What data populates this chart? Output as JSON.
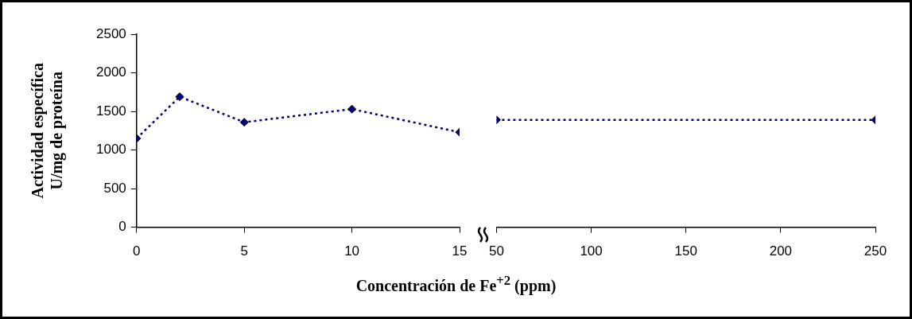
{
  "chart_data": [
    {
      "type": "line",
      "ylabel": "Actividad específica\nU/mg de proteína",
      "xlabel": "Concentración de Fe$^{+2}$ (ppm)",
      "x": [
        0,
        2,
        5,
        10,
        15
      ],
      "xlim": [
        0,
        15
      ],
      "xticks": [
        0,
        5,
        10,
        15
      ],
      "ylim": [
        0,
        2500
      ],
      "yticks": [
        0,
        500,
        1000,
        1500,
        2000,
        2500
      ],
      "marker": "diamond",
      "line_style": "dotted",
      "legend": false,
      "series": [
        {
          "color": "#000080",
          "values": [
            1150,
            1690,
            1360,
            1530,
            1230
          ]
        }
      ]
    },
    {
      "type": "line",
      "x": [
        50,
        250
      ],
      "xlim": [
        50,
        250
      ],
      "xticks": [
        50,
        100,
        150,
        200,
        250
      ],
      "ylim": [
        0,
        2500
      ],
      "tick_labels": "x",
      "marker": "diamond",
      "line_style": "dotted",
      "legend": false,
      "series": [
        {
          "color": "#000080",
          "values": [
            1390,
            1390
          ]
        }
      ]
    }
  ]
}
